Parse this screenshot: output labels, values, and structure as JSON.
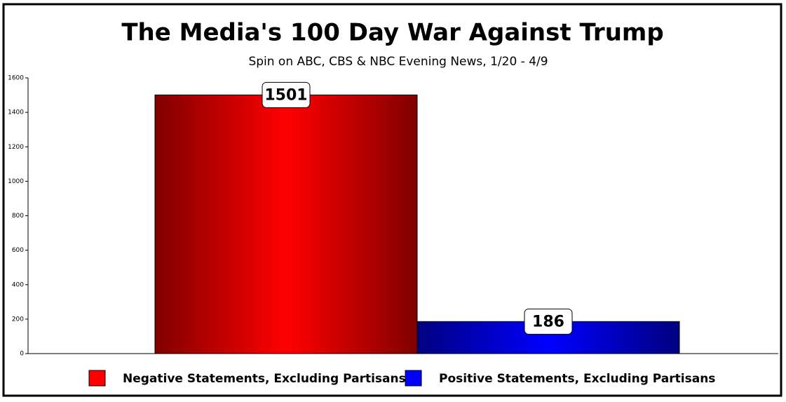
{
  "chart_data": {
    "type": "bar",
    "title": "The Media's 100 Day War Against Trump",
    "subtitle": "Spin on ABC, CBS & NBC Evening News,  1/20 - 4/9",
    "series": [
      {
        "name": "Negative Statements, Excluding Partisans",
        "color": "#ff0000",
        "values": [
          1501
        ]
      },
      {
        "name": "Positive Statements, Excluding Partisans",
        "color": "#0000ff",
        "values": [
          186
        ]
      }
    ],
    "ylim": [
      0,
      1600
    ],
    "yticks": [
      0,
      200,
      400,
      600,
      800,
      1000,
      1200,
      1400,
      1600
    ],
    "legend": "bottom"
  }
}
